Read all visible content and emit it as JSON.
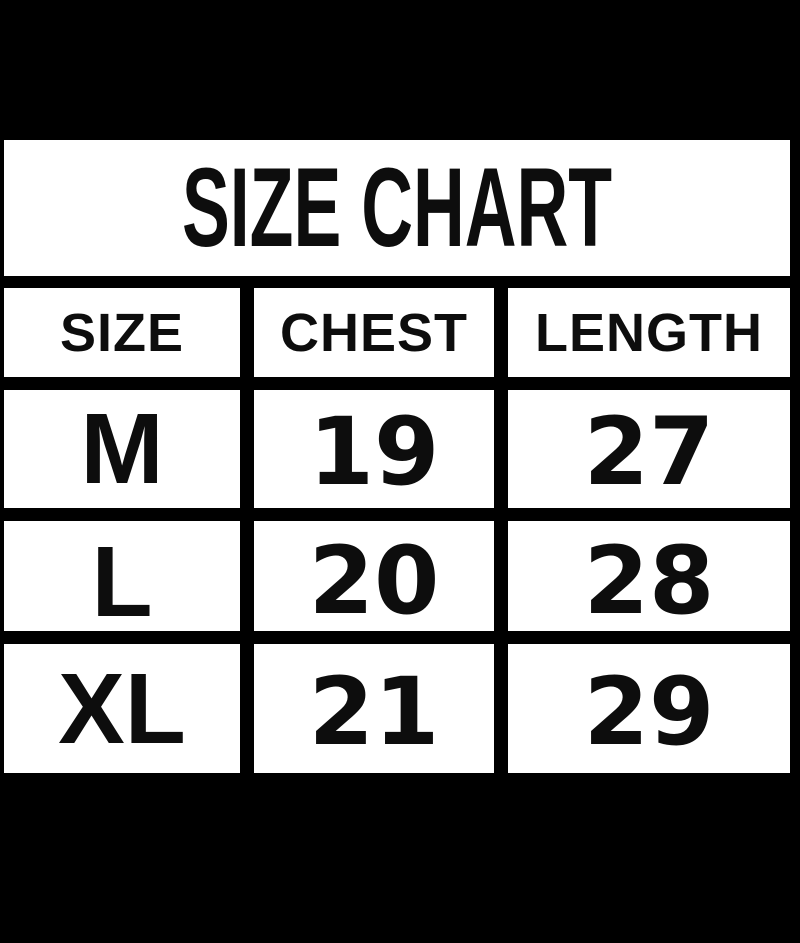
{
  "chart_data": {
    "type": "table",
    "title": "SIZE CHART",
    "columns": [
      "SIZE",
      "CHEST",
      "LENGTH"
    ],
    "rows": [
      [
        "M",
        "19",
        "27"
      ],
      [
        "L",
        "20",
        "28"
      ],
      [
        "XL",
        "21",
        "29"
      ]
    ]
  },
  "colors": {
    "background": "#000000",
    "cell_fill": "#ffffff",
    "ink": "#0d0d0d"
  }
}
